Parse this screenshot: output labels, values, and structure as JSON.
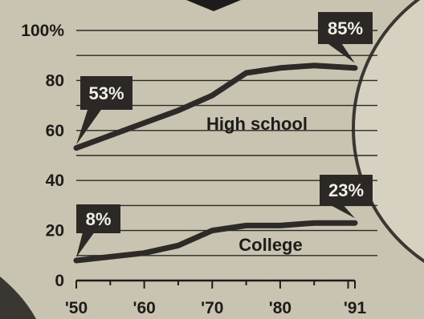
{
  "chart_data": {
    "type": "line",
    "title": "",
    "xlabel": "",
    "ylabel": "",
    "x": [
      1950,
      1960,
      1965,
      1970,
      1975,
      1980,
      1985,
      1991
    ],
    "x_ticks": [
      {
        "value": 1950,
        "label": "'50"
      },
      {
        "value": 1960,
        "label": "'60"
      },
      {
        "value": 1970,
        "label": "'70"
      },
      {
        "value": 1980,
        "label": "'80"
      },
      {
        "value": 1991,
        "label": "'91"
      }
    ],
    "y_ticks": [
      {
        "value": 0,
        "label": "0"
      },
      {
        "value": 20,
        "label": "20"
      },
      {
        "value": 40,
        "label": "40"
      },
      {
        "value": 60,
        "label": "60"
      },
      {
        "value": 80,
        "label": "80"
      },
      {
        "value": 100,
        "label": "100%"
      }
    ],
    "xlim": [
      1950,
      1991
    ],
    "ylim": [
      0,
      100
    ],
    "grid": true,
    "series": [
      {
        "name": "High school",
        "values": [
          53,
          63,
          68,
          74,
          83,
          85,
          86,
          85
        ],
        "start_label": "53%",
        "end_label": "85%"
      },
      {
        "name": "College",
        "values": [
          8,
          11,
          14,
          20,
          22,
          22,
          23,
          23
        ],
        "start_label": "8%",
        "end_label": "23%"
      }
    ]
  }
}
